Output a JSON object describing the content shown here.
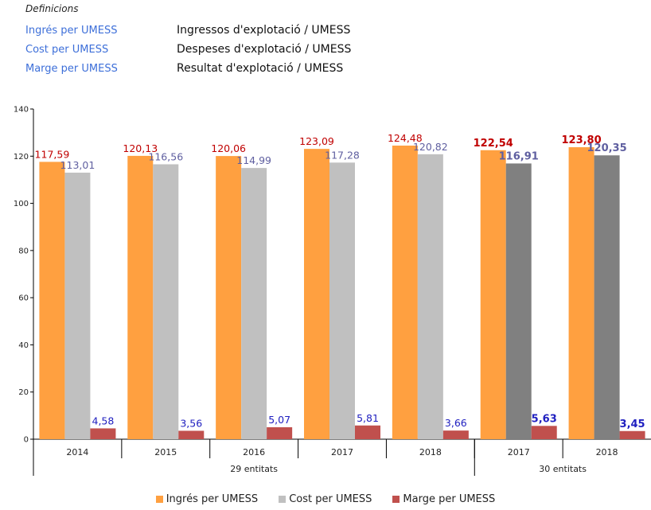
{
  "definitions": {
    "heading": "Definicions",
    "items": [
      {
        "term": "Ingrés per UMESS",
        "desc": "Ingressos d'explotació / UMESS"
      },
      {
        "term": "Cost per UMESS",
        "desc": "Despeses d'explotació / UMESS"
      },
      {
        "term": "Marge per UMESS",
        "desc": "Resultat d'explotació / UMESS"
      }
    ]
  },
  "chart_data": {
    "type": "bar",
    "ylim": [
      0,
      140
    ],
    "yticks": [
      0,
      20,
      40,
      60,
      80,
      100,
      120,
      140
    ],
    "grid": false,
    "legend_position": "bottom",
    "categories": [
      "2014",
      "2015",
      "2016",
      "2017",
      "2018",
      "2017",
      "2018"
    ],
    "groups": [
      {
        "label": "29 entitats",
        "categories": [
          0,
          1,
          2,
          3,
          4
        ]
      },
      {
        "label": "30 entitats",
        "categories": [
          5,
          6
        ]
      }
    ],
    "series": [
      {
        "name": "Ingrés per UMESS",
        "color": "#ffa040",
        "highlight_color": "#ffa040",
        "label_color": "#c00000",
        "values": [
          117.59,
          120.13,
          120.06,
          123.09,
          124.48,
          122.54,
          123.8
        ],
        "labels": [
          "117,59",
          "120,13",
          "120,06",
          "123,09",
          "124,48",
          "122,54",
          "123,80"
        ]
      },
      {
        "name": "Cost per UMESS",
        "color": "#c0c0c0",
        "highlight_color": "#808080",
        "label_color": "#5f5fa0",
        "values": [
          113.01,
          116.56,
          114.99,
          117.28,
          120.82,
          116.91,
          120.35
        ],
        "labels": [
          "113,01",
          "116,56",
          "114,99",
          "117,28",
          "120,82",
          "116,91",
          "120,35"
        ]
      },
      {
        "name": "Marge per UMESS",
        "color": "#c0504d",
        "highlight_color": "#c0504d",
        "label_color": "#2020c0",
        "values": [
          4.58,
          3.56,
          5.07,
          5.81,
          3.66,
          5.63,
          3.45
        ],
        "labels": [
          "4,58",
          "3,56",
          "5,07",
          "5,81",
          "3,66",
          "5,63",
          "3,45"
        ]
      }
    ],
    "highlighted_categories": [
      5,
      6
    ]
  }
}
